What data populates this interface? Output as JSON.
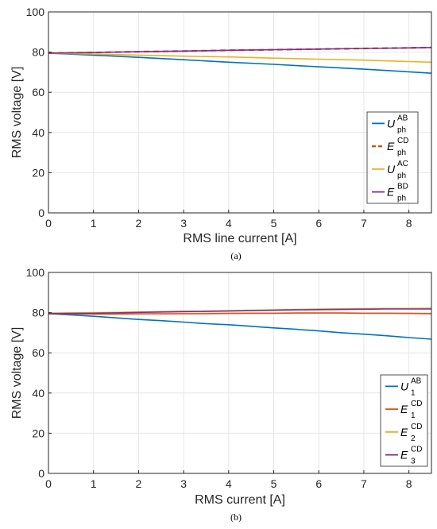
{
  "chart_data": [
    {
      "type": "line",
      "caption": "(a)",
      "xlabel": "RMS line current  [A]",
      "ylabel": "RMS voltage [V]",
      "xlim": [
        0,
        8.5
      ],
      "ylim": [
        0,
        100
      ],
      "xticks": [
        0,
        1,
        2,
        3,
        4,
        5,
        6,
        7,
        8
      ],
      "yticks": [
        0,
        20,
        40,
        60,
        80,
        100
      ],
      "grid": true,
      "legend_position": "bottom-right",
      "series": [
        {
          "name_base": "U",
          "name_sup": "AB",
          "name_sub": "ph",
          "color": "#0072BD",
          "dash": "solid",
          "x": [
            0,
            1,
            2,
            3,
            4,
            5,
            6,
            7,
            8,
            8.5
          ],
          "y": [
            79.5,
            78.5,
            77.4,
            76.2,
            75.0,
            73.9,
            72.7,
            71.5,
            70.2,
            69.5
          ]
        },
        {
          "name_base": "E",
          "name_sup": "CD",
          "name_sub": "ph",
          "color": "#D95319",
          "dash": "dashed",
          "x": [
            0,
            1,
            2,
            3,
            4,
            5,
            6,
            7,
            8,
            8.5
          ],
          "y": [
            79.5,
            79.8,
            80.2,
            80.5,
            80.9,
            81.2,
            81.5,
            81.8,
            82.1,
            82.3
          ]
        },
        {
          "name_base": "U",
          "name_sup": "AC",
          "name_sub": "ph",
          "color": "#EDB120",
          "dash": "solid",
          "x": [
            0,
            1,
            2,
            3,
            4,
            5,
            6,
            7,
            8,
            8.5
          ],
          "y": [
            79.5,
            79.0,
            78.5,
            78.0,
            77.6,
            77.0,
            76.5,
            76.0,
            75.3,
            75.0
          ]
        },
        {
          "name_base": "E",
          "name_sup": "BD",
          "name_sub": "ph",
          "color": "#7E2F8E",
          "dash": "solid",
          "x": [
            0,
            1,
            2,
            3,
            4,
            5,
            6,
            7,
            8,
            8.5
          ],
          "y": [
            79.5,
            79.8,
            80.2,
            80.5,
            80.9,
            81.2,
            81.5,
            81.8,
            82.1,
            82.3
          ]
        }
      ]
    },
    {
      "type": "line",
      "caption": "(b)",
      "xlabel": "RMS current  [A]",
      "ylabel": "RMS voltage [V]",
      "xlim": [
        0,
        8.5
      ],
      "ylim": [
        0,
        100
      ],
      "xticks": [
        0,
        1,
        2,
        3,
        4,
        5,
        6,
        7,
        8
      ],
      "yticks": [
        0,
        20,
        40,
        60,
        80,
        100
      ],
      "grid": true,
      "legend_position": "bottom-right",
      "series": [
        {
          "name_base": "U",
          "name_sup": "AB",
          "name_sub": "1",
          "color": "#0072BD",
          "dash": "solid",
          "x": [
            0,
            0.5,
            1,
            1.5,
            2,
            2.5,
            3,
            3.5,
            4,
            4.5,
            5,
            5.5,
            6,
            6.5,
            7,
            7.5,
            8,
            8.5
          ],
          "y": [
            79.5,
            78.9,
            78.2,
            77.4,
            76.6,
            76.0,
            75.3,
            74.5,
            74.0,
            73.2,
            72.4,
            71.7,
            70.9,
            70.0,
            69.3,
            68.5,
            67.6,
            66.8
          ]
        },
        {
          "name_base": "E",
          "name_sup": "CD",
          "name_sub": "1",
          "color": "#D95319",
          "dash": "solid",
          "x": [
            0,
            0.5,
            1,
            1.5,
            2,
            2.5,
            3,
            3.5,
            4,
            4.5,
            5,
            5.5,
            6,
            6.5,
            7,
            7.5,
            8,
            8.5
          ],
          "y": [
            79.5,
            79.4,
            79.3,
            79.3,
            79.4,
            79.4,
            79.5,
            79.5,
            79.6,
            79.7,
            79.7,
            79.8,
            79.8,
            79.8,
            79.7,
            79.7,
            79.6,
            79.5
          ]
        },
        {
          "name_base": "E",
          "name_sup": "CD",
          "name_sub": "2",
          "color": "#EDB120",
          "dash": "solid",
          "x": [
            0,
            0.5,
            1,
            1.5,
            2,
            2.5,
            3,
            3.5,
            4,
            4.5,
            5,
            5.5,
            6,
            6.5,
            7,
            7.5,
            8,
            8.5
          ],
          "y": [
            79.8,
            79.9,
            80.0,
            80.1,
            80.3,
            80.5,
            80.7,
            80.8,
            81.0,
            81.2,
            81.4,
            81.6,
            81.8,
            81.9,
            82.0,
            82.1,
            82.1,
            82.2
          ]
        },
        {
          "name_base": "E",
          "name_sup": "CD",
          "name_sub": "3",
          "color": "#7E2F8E",
          "dash": "solid",
          "x": [
            0,
            0.5,
            1,
            1.5,
            2,
            2.5,
            3,
            3.5,
            4,
            4.5,
            5,
            5.5,
            6,
            6.5,
            7,
            7.5,
            8,
            8.5
          ],
          "y": [
            79.5,
            79.6,
            79.7,
            79.9,
            80.1,
            80.3,
            80.5,
            80.6,
            80.8,
            81.0,
            81.2,
            81.4,
            81.5,
            81.6,
            81.7,
            81.8,
            81.8,
            81.8
          ]
        }
      ]
    }
  ]
}
